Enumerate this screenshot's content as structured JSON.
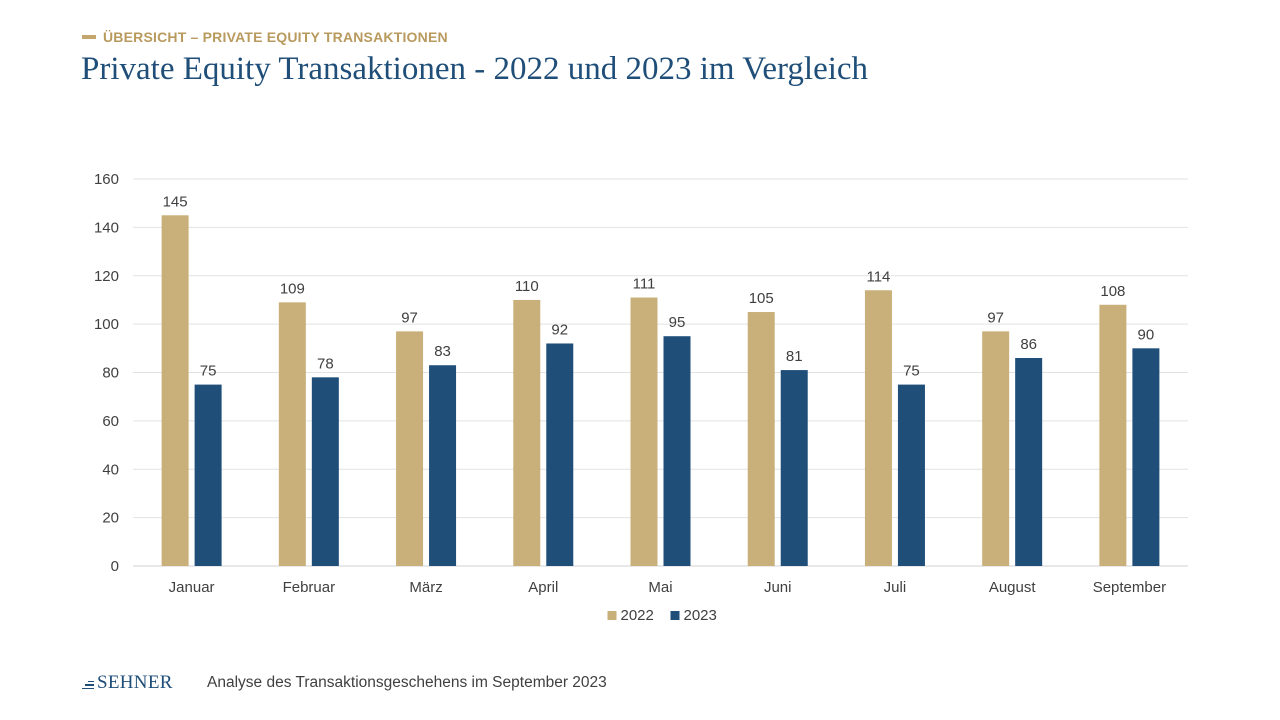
{
  "header": {
    "kicker": "ÜBERSICHT – PRIVATE EQUITY TRANSAKTIONEN",
    "title": "Private Equity Transaktionen - 2022 und 2023 im Vergleich"
  },
  "footer": {
    "logo_text": "SEHNER",
    "caption": "Analyse des Transaktionsgeschehens im September 2023"
  },
  "colors": {
    "accent_gold": "#c9b07a",
    "brand_blue": "#1f4e79"
  },
  "chart_data": {
    "type": "bar",
    "title": "",
    "xlabel": "",
    "ylabel": "",
    "categories": [
      "Januar",
      "Februar",
      "März",
      "April",
      "Mai",
      "Juni",
      "Juli",
      "August",
      "September"
    ],
    "series": [
      {
        "name": "2022",
        "color": "#c9b07a",
        "values": [
          145,
          109,
          97,
          110,
          111,
          105,
          114,
          97,
          108
        ]
      },
      {
        "name": "2023",
        "color": "#1f4e79",
        "values": [
          75,
          78,
          83,
          92,
          95,
          81,
          75,
          86,
          90
        ]
      }
    ],
    "ylim": [
      0,
      160
    ],
    "yticks": [
      0,
      20,
      40,
      60,
      80,
      100,
      120,
      140,
      160
    ],
    "grid": true,
    "legend_position": "bottom-center",
    "data_labels": true
  }
}
